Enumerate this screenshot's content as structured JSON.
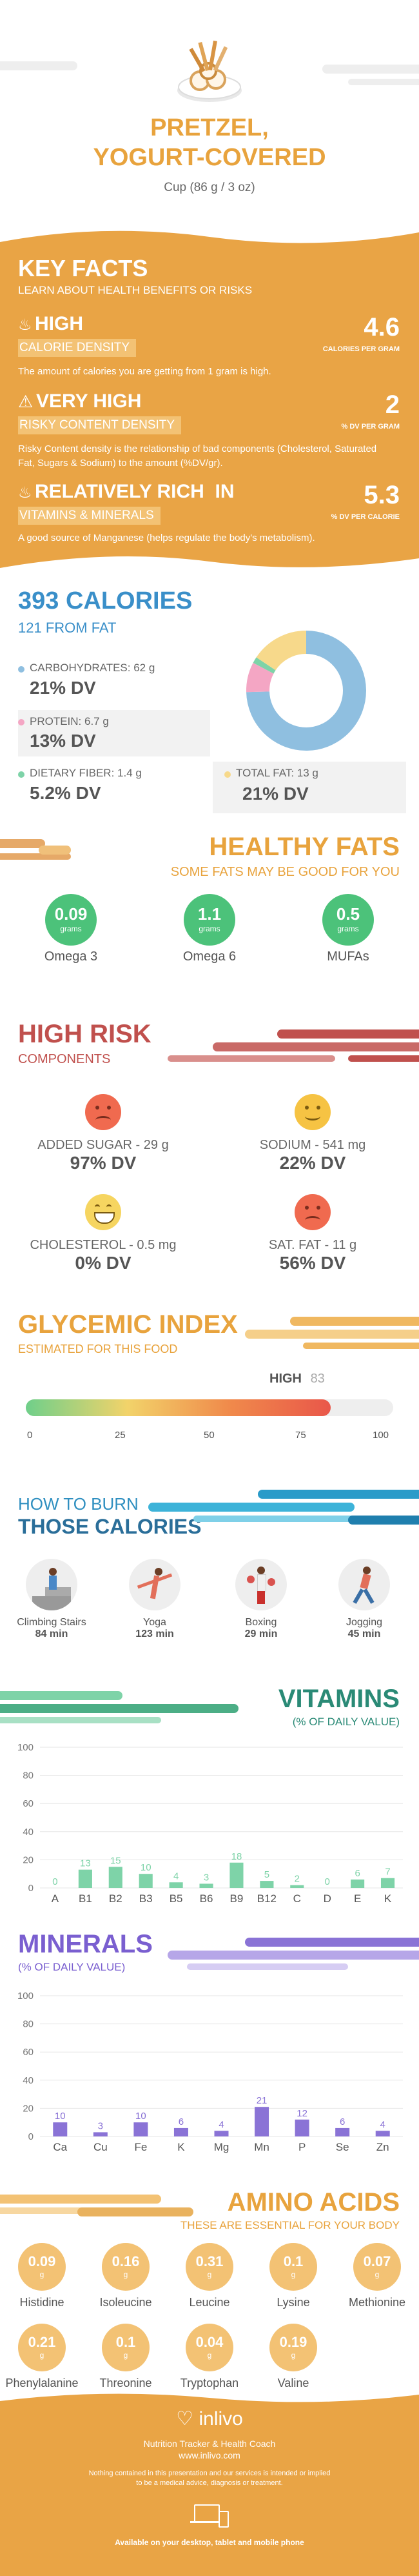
{
  "header": {
    "title_line1": "PRETZEL,",
    "title_line2": "YOGURT-COVERED",
    "serving": "Cup (86 g / 3 oz)"
  },
  "key_facts": {
    "title": "KEY FACTS",
    "subtitle": "LEARN ABOUT HEALTH BENEFITS OR RISKS",
    "items": [
      {
        "icon": "flame-icon",
        "label1": "HIGH",
        "label2": "CALORIE DENSITY",
        "value": "4.6",
        "unit": "CALORIES PER GRAM",
        "desc": "The amount of calories you are getting from 1 gram is high."
      },
      {
        "icon": "warning-icon",
        "label1": "VERY HIGH",
        "label2": "RISKY CONTENT DENSITY",
        "value": "2",
        "unit": "% DV PER GRAM",
        "desc": "Risky Content density is the relationship of bad components (Cholesterol, Saturated Fat, Sugars & Sodium) to the amount (%DV/gr)."
      },
      {
        "icon": "flame-icon",
        "label1": "RELATIVELY RICH  IN",
        "label2": "VITAMINS & MINERALS",
        "value": "5.3",
        "unit": "% DV PER CALORIE",
        "desc": "A good source of Manganese (helps regulate the body's metabolism)."
      }
    ]
  },
  "calories": {
    "title": "393 CALORIES",
    "subtitle": "121 FROM FAT",
    "carbs_label": "CARBOHYDRATES: 62 g",
    "carbs_dv": "21% DV",
    "protein_label": "PROTEIN: 6.7 g",
    "protein_dv": "13% DV",
    "fiber_label": "DIETARY FIBER: 1.4 g",
    "fiber_dv": "5.2% DV",
    "fat_label": "TOTAL FAT: 13 g",
    "fat_dv": "21% DV",
    "donut": [
      {
        "name": "carbohydrates",
        "value": 62,
        "color": "#8fbfe0"
      },
      {
        "name": "protein",
        "value": 6.7,
        "color": "#f4a6c4"
      },
      {
        "name": "fiber",
        "value": 1.4,
        "color": "#7ed3a8"
      },
      {
        "name": "fat",
        "value": 13,
        "color": "#f7d98b"
      }
    ]
  },
  "healthy_fats": {
    "title": "HEALTHY FATS",
    "subtitle": "SOME FATS MAY BE GOOD FOR YOU",
    "items": [
      {
        "value": "0.09",
        "unit": "grams",
        "label": "Omega 3"
      },
      {
        "value": "1.1",
        "unit": "grams",
        "label": "Omega 6"
      },
      {
        "value": "0.5",
        "unit": "grams",
        "label": "MUFAs"
      }
    ]
  },
  "high_risk": {
    "title": "HIGH RISK",
    "subtitle": "COMPONENTS",
    "items": [
      {
        "label": "ADDED SUGAR - 29 g",
        "dv": "97% DV",
        "face": "sad",
        "color": "#f06a4f"
      },
      {
        "label": "SODIUM - 541 mg",
        "dv": "22% DV",
        "face": "neutral",
        "color": "#f6c343"
      },
      {
        "label": "CHOLESTEROL - 0.5 mg",
        "dv": "0% DV",
        "face": "happy",
        "color": "#f6d560"
      },
      {
        "label": "SAT. FAT - 11 g",
        "dv": "56% DV",
        "face": "sad",
        "color": "#f06a4f"
      }
    ]
  },
  "glycemic": {
    "title": "GLYCEMIC INDEX",
    "subtitle": "ESTIMATED FOR THIS FOOD",
    "level": "HIGH",
    "value": 83,
    "value_text": "83",
    "ticks": [
      "0",
      "25",
      "50",
      "75",
      "100"
    ]
  },
  "burn": {
    "title1": "HOW TO BURN",
    "title2": "THOSE CALORIES",
    "items": [
      {
        "label": "Climbing Stairs",
        "time": "84 min"
      },
      {
        "label": "Yoga",
        "time": "123 min"
      },
      {
        "label": "Boxing",
        "time": "29 min"
      },
      {
        "label": "Jogging",
        "time": "45 min"
      }
    ]
  },
  "vitamins": {
    "title": "VITAMINS",
    "subtitle": "(% OF DAILY VALUE)",
    "color": "#7ed3a8"
  },
  "minerals": {
    "title": "MINERALS",
    "subtitle": "(% OF DAILY VALUE)",
    "color": "#8a73d6"
  },
  "chart_data": [
    {
      "type": "bar",
      "title": "VITAMINS",
      "categories": [
        "A",
        "B1",
        "B2",
        "B3",
        "B5",
        "B6",
        "B9",
        "B12",
        "C",
        "D",
        "E",
        "K"
      ],
      "values": [
        0,
        13,
        15,
        10,
        4,
        3,
        18,
        5,
        2,
        0,
        6,
        7
      ],
      "ylim": [
        0,
        100
      ],
      "yticks": [
        "0",
        "20",
        "40",
        "60",
        "80",
        "100"
      ]
    },
    {
      "type": "bar",
      "title": "MINERALS",
      "categories": [
        "Ca",
        "Cu",
        "Fe",
        "K",
        "Mg",
        "Mn",
        "P",
        "Se",
        "Zn"
      ],
      "values": [
        10,
        3,
        10,
        6,
        4,
        21,
        12,
        6,
        4
      ],
      "ylim": [
        0,
        100
      ],
      "yticks": [
        "0",
        "20",
        "40",
        "60",
        "80",
        "100"
      ]
    }
  ],
  "amino": {
    "title": "AMINO ACIDS",
    "subtitle": "THESE ARE ESSENTIAL FOR YOUR BODY",
    "items": [
      {
        "value": "0.09",
        "unit": "g",
        "label": "Histidine"
      },
      {
        "value": "0.16",
        "unit": "g",
        "label": "Isoleucine"
      },
      {
        "value": "0.31",
        "unit": "g",
        "label": "Leucine"
      },
      {
        "value": "0.1",
        "unit": "g",
        "label": "Lysine"
      },
      {
        "value": "0.07",
        "unit": "g",
        "label": "Methionine"
      },
      {
        "value": "0.21",
        "unit": "g",
        "label": "Phenylalanine"
      },
      {
        "value": "0.1",
        "unit": "g",
        "label": "Threonine"
      },
      {
        "value": "0.04",
        "unit": "g",
        "label": "Tryptophan"
      },
      {
        "value": "0.19",
        "unit": "g",
        "label": "Valine"
      }
    ]
  },
  "footer": {
    "brand": "inlivo",
    "tagline": "Nutrition Tracker & Health Coach",
    "url": "www.inlivo.com",
    "disclaimer1": "Nothing contained in this presentation and our services is intended or implied",
    "disclaimer2": "to be a medical advice, diagnosis or treatment.",
    "available": "Available on your desktop, tablet and mobile phone"
  }
}
